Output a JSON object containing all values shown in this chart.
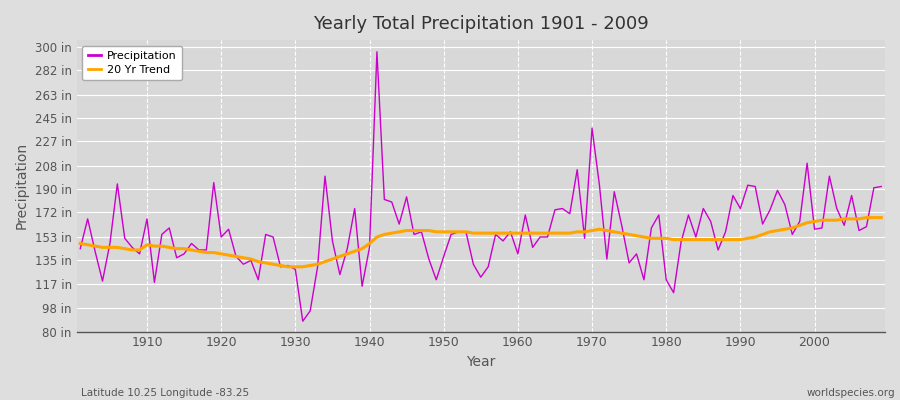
{
  "title": "Yearly Total Precipitation 1901 - 2009",
  "xlabel": "Year",
  "ylabel": "Precipitation",
  "years": [
    1901,
    1902,
    1903,
    1904,
    1905,
    1906,
    1907,
    1908,
    1909,
    1910,
    1911,
    1912,
    1913,
    1914,
    1915,
    1916,
    1917,
    1918,
    1919,
    1920,
    1921,
    1922,
    1923,
    1924,
    1925,
    1926,
    1927,
    1928,
    1929,
    1930,
    1931,
    1932,
    1933,
    1934,
    1935,
    1936,
    1937,
    1938,
    1939,
    1940,
    1941,
    1942,
    1943,
    1944,
    1945,
    1946,
    1947,
    1948,
    1949,
    1950,
    1951,
    1952,
    1953,
    1954,
    1955,
    1956,
    1957,
    1958,
    1959,
    1960,
    1961,
    1962,
    1963,
    1964,
    1965,
    1966,
    1967,
    1968,
    1969,
    1970,
    1971,
    1972,
    1973,
    1974,
    1975,
    1976,
    1977,
    1978,
    1979,
    1980,
    1981,
    1982,
    1983,
    1984,
    1985,
    1986,
    1987,
    1988,
    1989,
    1990,
    1991,
    1992,
    1993,
    1994,
    1995,
    1996,
    1997,
    1998,
    1999,
    2000,
    2001,
    2002,
    2003,
    2004,
    2005,
    2006,
    2007,
    2008,
    2009
  ],
  "precip": [
    144,
    167,
    142,
    119,
    148,
    194,
    152,
    145,
    140,
    167,
    118,
    155,
    160,
    137,
    140,
    148,
    143,
    143,
    195,
    153,
    159,
    138,
    132,
    135,
    120,
    155,
    153,
    130,
    131,
    128,
    88,
    96,
    130,
    200,
    150,
    124,
    144,
    175,
    115,
    145,
    296,
    182,
    180,
    163,
    184,
    155,
    157,
    136,
    120,
    138,
    155,
    157,
    157,
    132,
    122,
    130,
    155,
    150,
    157,
    140,
    170,
    145,
    153,
    153,
    174,
    175,
    171,
    205,
    152,
    237,
    193,
    136,
    188,
    162,
    133,
    140,
    120,
    160,
    170,
    120,
    110,
    149,
    170,
    153,
    175,
    165,
    143,
    157,
    185,
    175,
    193,
    192,
    163,
    174,
    189,
    178,
    155,
    165,
    210,
    159,
    160,
    200,
    175,
    162,
    185,
    158,
    161,
    191,
    192
  ],
  "trend": [
    148,
    147,
    146,
    145,
    145,
    145,
    144,
    143,
    143,
    147,
    146,
    146,
    145,
    144,
    144,
    143,
    142,
    141,
    141,
    140,
    139,
    138,
    137,
    136,
    134,
    133,
    132,
    131,
    130,
    130,
    130,
    131,
    132,
    134,
    136,
    138,
    140,
    142,
    144,
    148,
    153,
    155,
    156,
    157,
    158,
    158,
    158,
    158,
    157,
    157,
    157,
    157,
    157,
    156,
    156,
    156,
    156,
    156,
    156,
    156,
    156,
    156,
    156,
    156,
    156,
    156,
    156,
    157,
    157,
    158,
    159,
    158,
    157,
    156,
    155,
    154,
    153,
    152,
    152,
    152,
    151,
    151,
    151,
    151,
    151,
    151,
    151,
    151,
    151,
    151,
    152,
    153,
    155,
    157,
    158,
    159,
    160,
    162,
    164,
    165,
    166,
    166,
    166,
    167,
    167,
    167,
    168,
    168,
    168
  ],
  "precip_color": "#CC00CC",
  "trend_color": "#FFA500",
  "bg_color": "#DEDEDE",
  "plot_bg_color": "#D8D8D8",
  "grid_color": "#FFFFFF",
  "ytick_labels": [
    "80 in",
    "98 in",
    "117 in",
    "135 in",
    "153 in",
    "172 in",
    "190 in",
    "208 in",
    "227 in",
    "245 in",
    "263 in",
    "282 in",
    "300 in"
  ],
  "ytick_values": [
    80,
    98,
    117,
    135,
    153,
    172,
    190,
    208,
    227,
    245,
    263,
    282,
    300
  ],
  "ylim": [
    80,
    305
  ],
  "xlim": [
    1900.5,
    2009.5
  ],
  "xtick_values": [
    1910,
    1920,
    1930,
    1940,
    1950,
    1960,
    1970,
    1980,
    1990,
    2000
  ],
  "footer_left": "Latitude 10.25 Longitude -83.25",
  "footer_right": "worldspecies.org",
  "legend_labels": [
    "Precipitation",
    "20 Yr Trend"
  ]
}
